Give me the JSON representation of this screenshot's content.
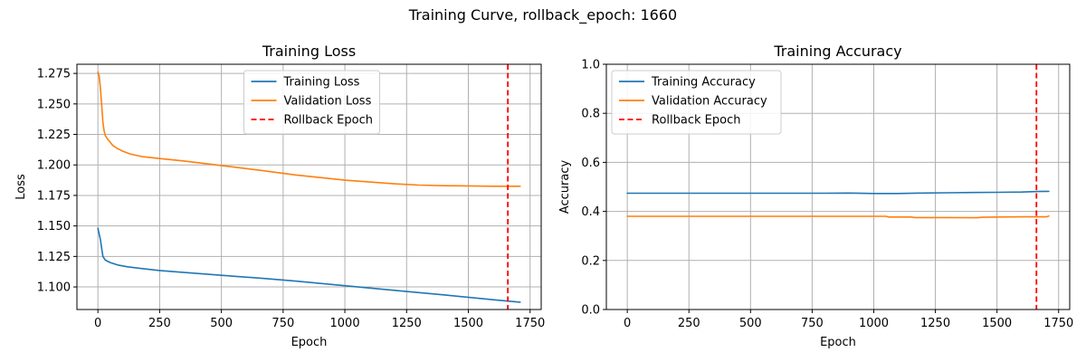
{
  "figure": {
    "suptitle": "Training Curve, rollback_epoch: 1660"
  },
  "colors": {
    "train": "#1f77b4",
    "val": "#ff7f0e",
    "rollback": "#ff0000"
  },
  "chart_data": [
    {
      "type": "line",
      "title": "Training Loss",
      "xlabel": "Epoch",
      "ylabel": "Loss",
      "xlim": [
        -85,
        1795
      ],
      "ylim": [
        1.0815,
        1.2825
      ],
      "xticks": [
        0,
        250,
        500,
        750,
        1000,
        1250,
        1500,
        1750
      ],
      "xtick_labels": [
        "0",
        "250",
        "500",
        "750",
        "1000",
        "1250",
        "1500",
        "1750"
      ],
      "yticks": [
        1.1,
        1.125,
        1.15,
        1.175,
        1.2,
        1.225,
        1.25,
        1.275
      ],
      "ytick_labels": [
        "1.100",
        "1.125",
        "1.150",
        "1.175",
        "1.200",
        "1.225",
        "1.250",
        "1.275"
      ],
      "grid": true,
      "legend_position": "upper center",
      "series": [
        {
          "name": "Training Loss",
          "color_key": "train",
          "x": [
            0,
            10,
            20,
            30,
            50,
            80,
            120,
            180,
            250,
            350,
            500,
            650,
            800,
            1000,
            1200,
            1400,
            1600,
            1710
          ],
          "y": [
            1.148,
            1.139,
            1.125,
            1.122,
            1.12,
            1.118,
            1.1165,
            1.115,
            1.1135,
            1.1118,
            1.1095,
            1.1073,
            1.1048,
            1.101,
            1.0972,
            1.0935,
            1.0895,
            1.0875
          ]
        },
        {
          "name": "Validation Loss",
          "color_key": "val",
          "x": [
            0,
            5,
            10,
            15,
            20,
            25,
            30,
            40,
            60,
            80,
            100,
            130,
            180,
            250,
            350,
            500,
            650,
            800,
            1000,
            1200,
            1300,
            1400,
            1500,
            1600,
            1710
          ],
          "y": [
            1.276,
            1.273,
            1.263,
            1.25,
            1.235,
            1.228,
            1.224,
            1.221,
            1.216,
            1.2133,
            1.2113,
            1.209,
            1.2068,
            1.2052,
            1.2032,
            1.1995,
            1.1958,
            1.1918,
            1.1875,
            1.1845,
            1.1835,
            1.183,
            1.1828,
            1.1825,
            1.1825
          ]
        }
      ],
      "vline": {
        "name": "Rollback Epoch",
        "x": 1660,
        "color_key": "rollback"
      }
    },
    {
      "type": "line",
      "title": "Training Accuracy",
      "xlabel": "Epoch",
      "ylabel": "Accuracy",
      "xlim": [
        -85,
        1795
      ],
      "ylim": [
        0,
        1
      ],
      "xticks": [
        0,
        250,
        500,
        750,
        1000,
        1250,
        1500,
        1750
      ],
      "xtick_labels": [
        "0",
        "250",
        "500",
        "750",
        "1000",
        "1250",
        "1500",
        "1750"
      ],
      "yticks": [
        0,
        0.2,
        0.4,
        0.6,
        0.8,
        1.0
      ],
      "ytick_labels": [
        "0.0",
        "0.2",
        "0.4",
        "0.6",
        "0.8",
        "1.0"
      ],
      "grid": true,
      "legend_position": "upper left",
      "series": [
        {
          "name": "Training Accuracy",
          "color_key": "train",
          "x": [
            0,
            200,
            400,
            600,
            800,
            900,
            1000,
            1100,
            1200,
            1300,
            1400,
            1500,
            1600,
            1660,
            1710
          ],
          "y": [
            0.474,
            0.474,
            0.474,
            0.474,
            0.474,
            0.475,
            0.473,
            0.473,
            0.475,
            0.476,
            0.477,
            0.478,
            0.479,
            0.481,
            0.482
          ]
        },
        {
          "name": "Validation Accuracy",
          "color_key": "val",
          "x": [
            0,
            200,
            400,
            600,
            800,
            1000,
            1050,
            1060,
            1150,
            1170,
            1300,
            1420,
            1440,
            1500,
            1600,
            1700,
            1710
          ],
          "y": [
            0.38,
            0.38,
            0.38,
            0.38,
            0.38,
            0.38,
            0.38,
            0.377,
            0.377,
            0.375,
            0.375,
            0.374,
            0.376,
            0.377,
            0.378,
            0.378,
            0.381
          ]
        }
      ],
      "vline": {
        "name": "Rollback Epoch",
        "x": 1660,
        "color_key": "rollback"
      }
    }
  ]
}
